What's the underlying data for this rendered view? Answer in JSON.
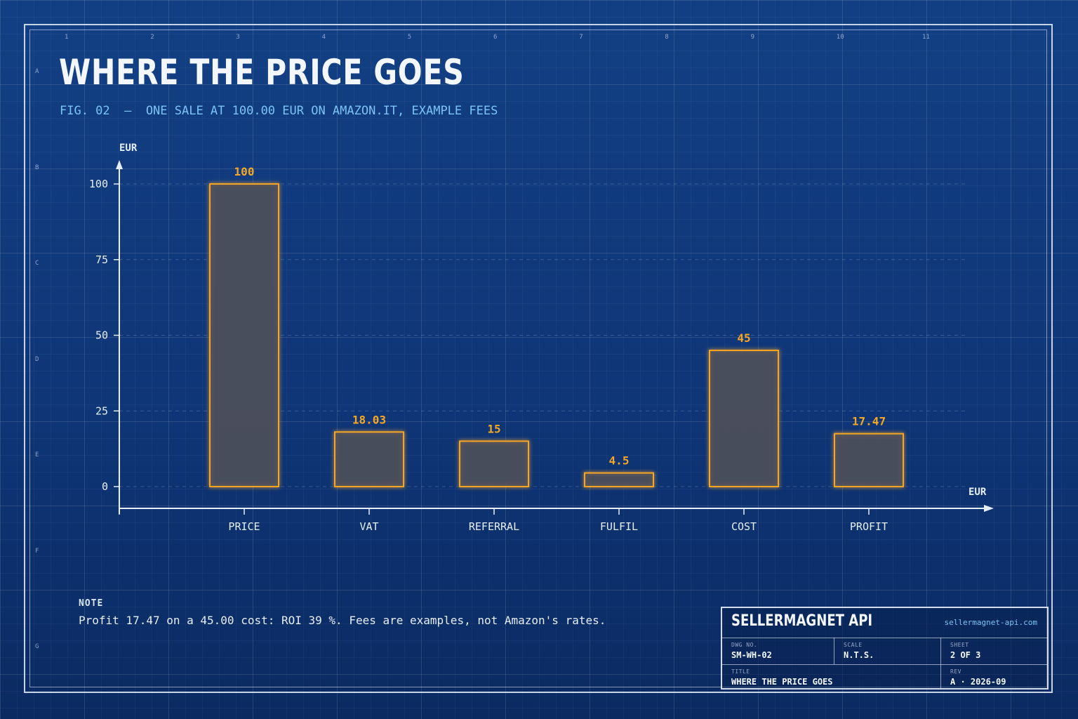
{
  "header": {
    "title": "WHERE THE PRICE GOES",
    "subtitle": "FIG. 02  —  ONE SALE AT 100.00 EUR ON AMAZON.IT, EXAMPLE FEES"
  },
  "frame": {
    "column_labels": [
      "1",
      "2",
      "3",
      "4",
      "5",
      "6",
      "7",
      "8",
      "9",
      "10",
      "11"
    ],
    "row_labels": [
      "A",
      "B",
      "C",
      "D",
      "E",
      "F",
      "G"
    ]
  },
  "chart_data": {
    "type": "bar",
    "categories": [
      "PRICE",
      "VAT",
      "REFERRAL",
      "FULFIL",
      "COST",
      "PROFIT"
    ],
    "values": [
      100,
      18.03,
      15,
      4.5,
      45,
      17.47
    ],
    "data_labels": [
      "100",
      "18.03",
      "15",
      "4.5",
      "45",
      "17.47"
    ],
    "ylabel": "EUR",
    "xlabel": "EUR",
    "ylim": [
      0,
      100
    ],
    "yticks": [
      0,
      25,
      50,
      75,
      100
    ],
    "grid": true,
    "colors": {
      "bar_stroke": "#f5a623",
      "bar_fill": "#4a4f5a",
      "label": "#f5a623"
    }
  },
  "note": {
    "label": "NOTE",
    "text": "Profit 17.47 on a 45.00 cost: ROI 39 %. Fees are examples, not Amazon's rates."
  },
  "title_block": {
    "company": "SELLERMAGNET API",
    "url": "sellermagnet-api.com",
    "dwg_no_label": "DWG NO.",
    "dwg_no": "SM-WH-02",
    "scale_label": "SCALE",
    "scale": "N.T.S.",
    "sheet_label": "SHEET",
    "sheet": "2 OF 3",
    "title_label": "TITLE",
    "title": "WHERE THE PRICE GOES",
    "rev_label": "REV",
    "rev": "A · 2026-09"
  }
}
